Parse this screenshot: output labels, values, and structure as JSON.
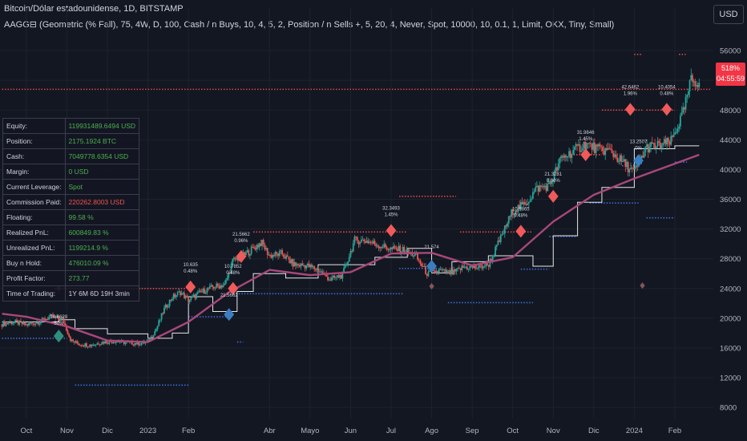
{
  "header": {
    "title": "Bitcoin/Dólar estadounidense, 1D, BITSTAMP",
    "indicator": "AAGG⊟ (Geometric (% Fall), 75, 4W, D, 100, Cash / n Buys, 10, 4, 5, 2, Position / n Sells +, 5, 20, 4, Never, Spot, 10000, 10, 0.1, 1, Limit, OKX, Tiny, Small)"
  },
  "currency_button": "USD",
  "price_tag": {
    "line1": "518%",
    "line2": "04:55:59"
  },
  "stats": [
    {
      "label": "Equity:",
      "value": "119931489.6494 USD",
      "tone": "pos"
    },
    {
      "label": "Position:",
      "value": "2175.1924 BTC",
      "tone": "pos"
    },
    {
      "label": "Cash:",
      "value": "7049778.6354 USD",
      "tone": "pos"
    },
    {
      "label": "Margin:",
      "value": "0 USD",
      "tone": "pos"
    },
    {
      "label": "Current Leverage:",
      "value": "Spot",
      "tone": "pos"
    },
    {
      "label": "Commission Paid:",
      "value": "220262.8003 USD",
      "tone": "neg"
    },
    {
      "label": "Floating:",
      "value": "99.58 %",
      "tone": "pos"
    },
    {
      "label": "Realized PnL:",
      "value": "600849.83 %",
      "tone": "pos"
    },
    {
      "label": "Unrealized PnL:",
      "value": "1199214.9 %",
      "tone": "pos"
    },
    {
      "label": "Buy n Hold:",
      "value": "476010.09 %",
      "tone": "pos"
    },
    {
      "label": "Profit Factor:",
      "value": "273.77",
      "tone": "pos"
    },
    {
      "label": "Time of Trading:",
      "value": "1Y 6M 6D 19H 3min",
      "tone": "neu"
    }
  ],
  "colors": {
    "background": "#131722",
    "up_candle": "#26a69a",
    "down_candle": "#ef5350",
    "ma_line": "#a8487a",
    "sell_marker": "#f05a5a",
    "buy_marker": "#2f8f7f",
    "blue_marker": "#3a7ec0",
    "step_line": "#e8e8e8",
    "sell_level": "#e04848",
    "buy_level": "#3a6fd8"
  },
  "chart_data": {
    "type": "line",
    "title": "",
    "xlabel": "",
    "ylabel": "",
    "x_ticks": [
      "Oct",
      "Nov",
      "Dic",
      "2023",
      "Feb",
      "Abr",
      "Mayo",
      "Jun",
      "Jul",
      "Ago",
      "Sep",
      "Oct",
      "Nov",
      "Dic",
      "2024",
      "Feb"
    ],
    "y_ticks": [
      8000,
      12000,
      16000,
      20000,
      24000,
      28000,
      32000,
      36000,
      40000,
      44000,
      48000,
      52000,
      56000
    ],
    "ylim": [
      6500,
      58500
    ],
    "grid": true,
    "x_months": [
      0,
      1,
      2,
      3,
      4,
      5,
      6,
      7,
      8,
      9,
      10,
      11,
      12,
      13,
      14,
      15,
      16,
      17,
      18
    ],
    "x_tick_positions": [
      0.0,
      1.0,
      2.0,
      3.0,
      4.0,
      6.0,
      7.0,
      8.0,
      9.0,
      10.0,
      11.0,
      12.0,
      13.0,
      14.0,
      15.0,
      16.0
    ],
    "series": [
      {
        "role": "price",
        "x": [
          -0.6,
          -0.3,
          0.0,
          0.3,
          0.6,
          0.9,
          1.1,
          1.3,
          1.6,
          1.9,
          2.2,
          2.5,
          2.8,
          3.0,
          3.2,
          3.4,
          3.6,
          3.8,
          4.0,
          4.3,
          4.6,
          4.9,
          5.1,
          5.3,
          5.5,
          5.8,
          6.0,
          6.3,
          6.6,
          6.9,
          7.2,
          7.5,
          7.8,
          8.1,
          8.4,
          8.7,
          9.0,
          9.3,
          9.6,
          9.9,
          10.2,
          10.5,
          10.8,
          11.1,
          11.4,
          11.7,
          12.0,
          12.3,
          12.6,
          12.9,
          13.2,
          13.5,
          13.8,
          14.1,
          14.4,
          14.7,
          15.0,
          15.3,
          15.6,
          15.9,
          16.2,
          16.4,
          16.6
        ],
        "values": [
          19200,
          19500,
          19100,
          19500,
          20200,
          19800,
          17000,
          16500,
          16400,
          16800,
          16900,
          16700,
          16600,
          16800,
          18500,
          21200,
          22800,
          23500,
          22400,
          23500,
          24200,
          24500,
          27800,
          28200,
          29000,
          30200,
          28400,
          28700,
          27200,
          27100,
          26500,
          25200,
          25800,
          30500,
          30400,
          29800,
          29300,
          29200,
          28400,
          25900,
          26400,
          26000,
          26900,
          26800,
          27200,
          30700,
          34500,
          35300,
          37500,
          37800,
          41500,
          42500,
          43500,
          42700,
          42500,
          41000,
          39600,
          43000,
          43200,
          43700,
          47500,
          52000,
          51800
        ]
      },
      {
        "role": "moving_average",
        "x": [
          -0.6,
          0.0,
          1.0,
          2.0,
          3.0,
          4.0,
          5.0,
          6.0,
          7.0,
          8.0,
          9.0,
          10.0,
          11.0,
          12.0,
          13.0,
          14.0,
          15.0,
          16.0,
          16.6
        ],
        "values": [
          20600,
          20200,
          18900,
          17000,
          16800,
          19500,
          23500,
          26500,
          25800,
          26200,
          28700,
          28800,
          27100,
          28200,
          33000,
          36600,
          38800,
          40800,
          42000
        ]
      }
    ],
    "sell_markers": [
      {
        "x": 4.05,
        "y": 24200,
        "label": "10.635",
        "pct": "0.48%"
      },
      {
        "x": 5.3,
        "y": 28300,
        "label": "21.5662",
        "pct": "0.96%"
      },
      {
        "x": 9.0,
        "y": 31800,
        "label": "32.3493",
        "pct": "1.45%"
      },
      {
        "x": 12.2,
        "y": 31700,
        "label": "10.9865",
        "pct": "0.48%"
      },
      {
        "x": 13.0,
        "y": 36400,
        "label": "21.3231",
        "pct": "0.96%"
      },
      {
        "x": 13.8,
        "y": 42000,
        "label": "31.9846",
        "pct": "1.45%"
      },
      {
        "x": 14.9,
        "y": 48100,
        "label": "42.6462",
        "pct": "1.96%"
      },
      {
        "x": 15.8,
        "y": 48100,
        "label": "10.4054",
        "pct": "0.48%"
      },
      {
        "x": 5.1,
        "y": 24000,
        "label": "10.7852",
        "pct": "0.48%"
      }
    ],
    "buy_markers": [
      {
        "x": 0.8,
        "y": 17600,
        "label": "10.6628",
        "pct": "50%"
      },
      {
        "x": 5.0,
        "y": 20500,
        "label": "21.5662",
        "pct": ""
      },
      {
        "x": 10.0,
        "y": 27000,
        "label": "21.574",
        "pct": ""
      },
      {
        "x": 15.1,
        "y": 41200,
        "label": "13.2507",
        "pct": "0%"
      }
    ],
    "faded_markers": [
      {
        "x": 0.8,
        "y": 24000
      },
      {
        "x": 10.0,
        "y": 24300
      },
      {
        "x": 15.2,
        "y": 24400
      },
      {
        "x": 15.8,
        "y": 48000
      }
    ],
    "sell_levels": [
      {
        "x0": 0.7,
        "x1": 4.05,
        "y": 24000
      },
      {
        "x0": 5.6,
        "x1": 9.4,
        "y": 31600
      },
      {
        "x0": 9.2,
        "x1": 10.6,
        "y": 36400
      },
      {
        "x0": 10.7,
        "x1": 12.5,
        "y": 31600
      },
      {
        "x0": 13.5,
        "x1": 14.2,
        "y": 42000
      },
      {
        "x0": 14.2,
        "x1": 15.2,
        "y": 48000
      },
      {
        "x0": 15.3,
        "x1": 16.0,
        "y": 48000
      },
      {
        "x0": 15.0,
        "x1": 15.2,
        "y": 55500
      },
      {
        "x0": 16.1,
        "x1": 16.3,
        "y": 55500
      },
      {
        "x0": -0.6,
        "x1": 16.9,
        "y": 50800
      }
    ],
    "buy_levels": [
      {
        "x0": -0.6,
        "x1": 1.0,
        "y": 17300
      },
      {
        "x0": 1.2,
        "x1": 4.0,
        "y": 11000
      },
      {
        "x0": 4.0,
        "x1": 5.1,
        "y": 20200
      },
      {
        "x0": 5.1,
        "x1": 9.3,
        "y": 23300
      },
      {
        "x0": 9.2,
        "x1": 10.2,
        "y": 26700
      },
      {
        "x0": 10.4,
        "x1": 12.5,
        "y": 22100
      },
      {
        "x0": 12.2,
        "x1": 12.9,
        "y": 26600
      },
      {
        "x0": 12.9,
        "x1": 13.6,
        "y": 31000
      },
      {
        "x0": 13.9,
        "x1": 15.1,
        "y": 35500
      },
      {
        "x0": 14.7,
        "x1": 15.0,
        "y": 40500
      },
      {
        "x0": 15.3,
        "x1": 16.0,
        "y": 33500
      },
      {
        "x0": 16.0,
        "x1": 16.3,
        "y": 41000
      },
      {
        "x0": 5.2,
        "x1": 5.35,
        "y": 16800
      }
    ],
    "step_line": {
      "x": [
        -0.6,
        0.8,
        1.2,
        2.0,
        3.0,
        3.6,
        4.0,
        4.6,
        5.2,
        5.6,
        6.4,
        7.2,
        8.6,
        9.4,
        10.0,
        10.5,
        11.4,
        12.5,
        13.0,
        13.6,
        14.2,
        15.0,
        15.3,
        16.0,
        16.6
      ],
      "values": [
        19500,
        19800,
        18600,
        17900,
        17300,
        18000,
        22900,
        20900,
        23600,
        26000,
        25400,
        27200,
        28200,
        29400,
        26100,
        27600,
        28400,
        27000,
        31100,
        35600,
        37600,
        42800,
        42800,
        43200,
        43200
      ]
    }
  }
}
